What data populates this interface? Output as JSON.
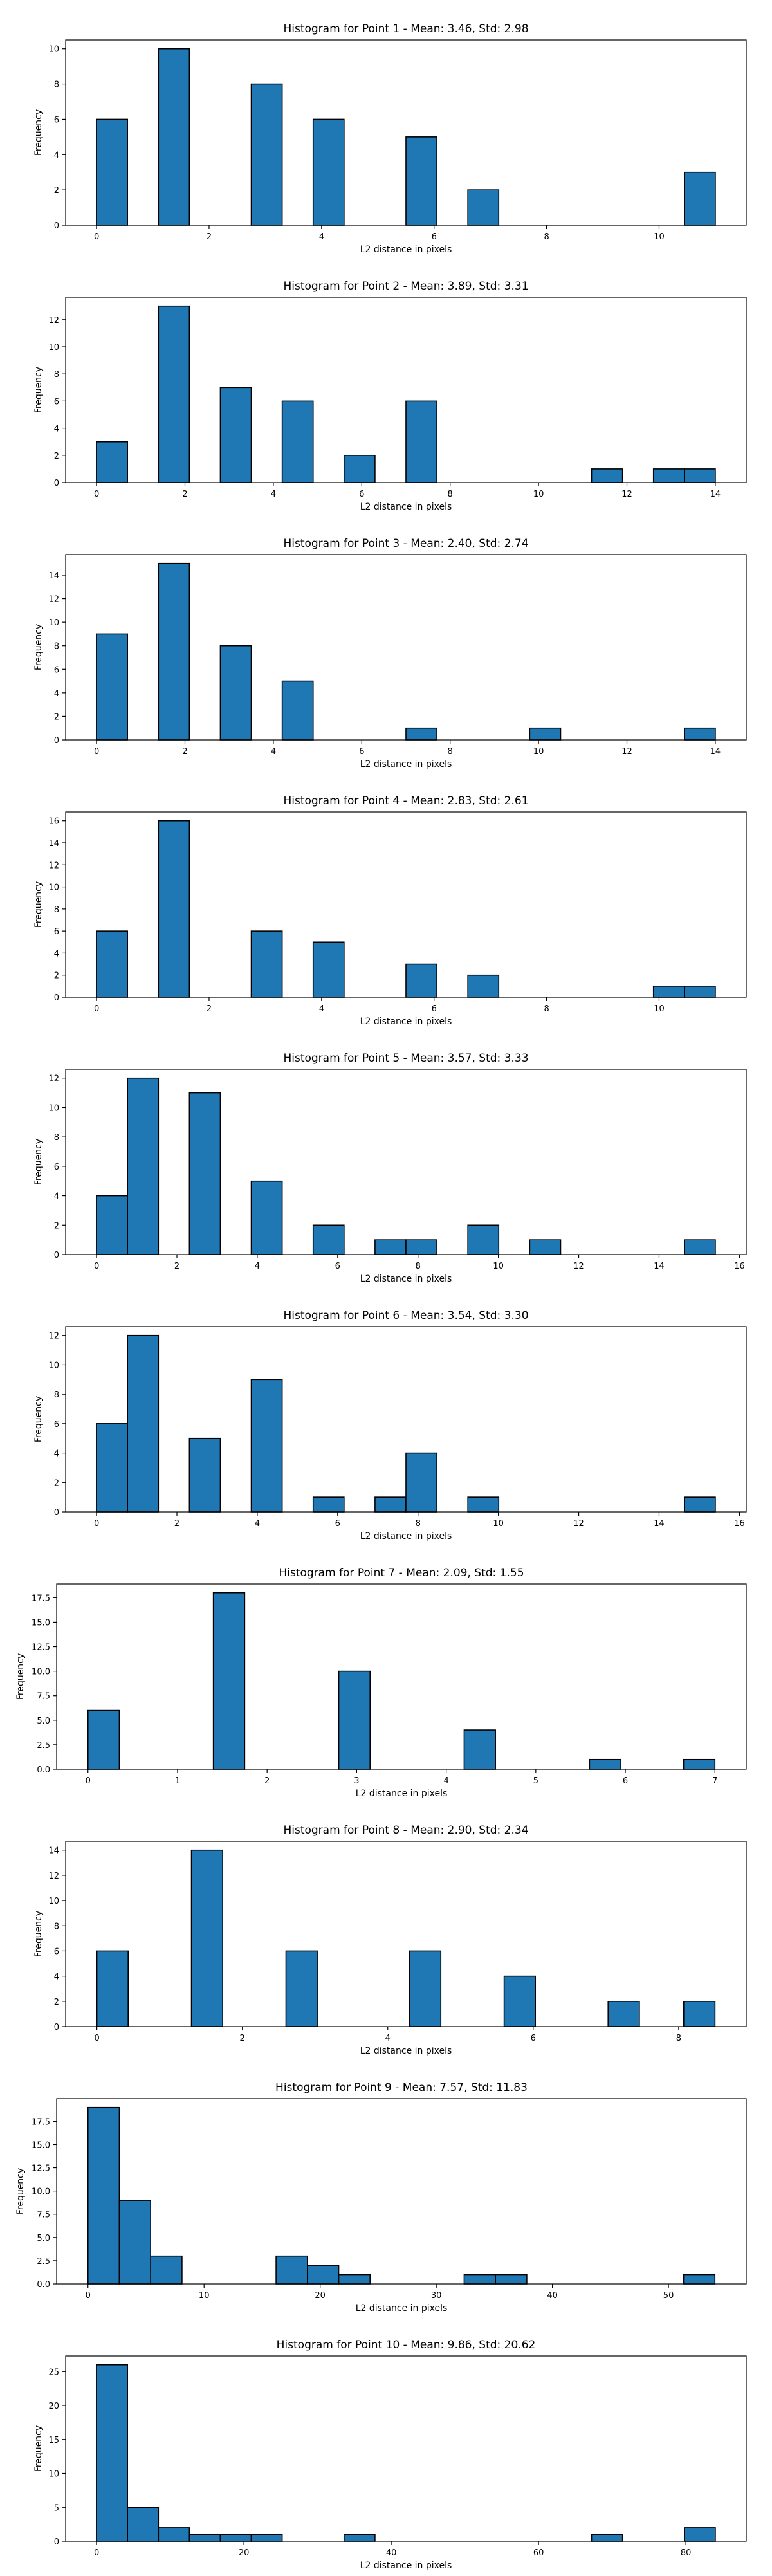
{
  "chart_data": [
    {
      "type": "bar",
      "title": "Histogram for Point 1 - Mean: 3.46, Std: 2.98",
      "xlabel": "L2 distance in pixels",
      "ylabel": "Frequency",
      "xlim": [
        -0.55,
        11.55
      ],
      "ylim": [
        0,
        10.5
      ],
      "xticks": [
        0,
        2,
        4,
        6,
        8,
        10
      ],
      "yticks": [
        0,
        2,
        4,
        6,
        8,
        10
      ],
      "bins": [
        {
          "x0": 0.0,
          "x1": 0.55,
          "count": 6
        },
        {
          "x0": 1.1,
          "x1": 1.65,
          "count": 10
        },
        {
          "x0": 2.75,
          "x1": 3.3,
          "count": 8
        },
        {
          "x0": 3.85,
          "x1": 4.4,
          "count": 6
        },
        {
          "x0": 5.5,
          "x1": 6.05,
          "count": 5
        },
        {
          "x0": 6.6,
          "x1": 7.15,
          "count": 2
        },
        {
          "x0": 10.45,
          "x1": 11.0,
          "count": 3
        }
      ]
    },
    {
      "type": "bar",
      "title": "Histogram for Point 2 - Mean: 3.89, Std: 3.31",
      "xlabel": "L2 distance in pixels",
      "ylabel": "Frequency",
      "xlim": [
        -0.7,
        14.7
      ],
      "ylim": [
        0,
        13.65
      ],
      "xticks": [
        0,
        2,
        4,
        6,
        8,
        10,
        12,
        14
      ],
      "yticks": [
        0,
        2,
        4,
        6,
        8,
        10,
        12
      ],
      "bins": [
        {
          "x0": 0.0,
          "x1": 0.7,
          "count": 3
        },
        {
          "x0": 1.4,
          "x1": 2.1,
          "count": 13
        },
        {
          "x0": 2.8,
          "x1": 3.5,
          "count": 7
        },
        {
          "x0": 4.2,
          "x1": 4.9,
          "count": 6
        },
        {
          "x0": 5.6,
          "x1": 6.3,
          "count": 2
        },
        {
          "x0": 7.0,
          "x1": 7.7,
          "count": 6
        },
        {
          "x0": 11.2,
          "x1": 11.9,
          "count": 1
        },
        {
          "x0": 12.6,
          "x1": 13.3,
          "count": 1
        },
        {
          "x0": 13.3,
          "x1": 14.0,
          "count": 1
        }
      ]
    },
    {
      "type": "bar",
      "title": "Histogram for Point 3 - Mean: 2.40, Std: 2.74",
      "xlabel": "L2 distance in pixels",
      "ylabel": "Frequency",
      "xlim": [
        -0.7,
        14.7
      ],
      "ylim": [
        0,
        15.75
      ],
      "xticks": [
        0,
        2,
        4,
        6,
        8,
        10,
        12,
        14
      ],
      "yticks": [
        0,
        2,
        4,
        6,
        8,
        10,
        12,
        14
      ],
      "bins": [
        {
          "x0": 0.0,
          "x1": 0.7,
          "count": 9
        },
        {
          "x0": 1.4,
          "x1": 2.1,
          "count": 15
        },
        {
          "x0": 2.8,
          "x1": 3.5,
          "count": 8
        },
        {
          "x0": 4.2,
          "x1": 4.9,
          "count": 5
        },
        {
          "x0": 7.0,
          "x1": 7.7,
          "count": 1
        },
        {
          "x0": 9.8,
          "x1": 10.5,
          "count": 1
        },
        {
          "x0": 13.3,
          "x1": 14.0,
          "count": 1
        }
      ]
    },
    {
      "type": "bar",
      "title": "Histogram for Point 4 - Mean: 2.83, Std: 2.61",
      "xlabel": "L2 distance in pixels",
      "ylabel": "Frequency",
      "xlim": [
        -0.55,
        11.55
      ],
      "ylim": [
        0,
        16.8
      ],
      "xticks": [
        0,
        2,
        4,
        6,
        8,
        10
      ],
      "yticks": [
        0,
        2,
        4,
        6,
        8,
        10,
        12,
        14,
        16
      ],
      "bins": [
        {
          "x0": 0.0,
          "x1": 0.55,
          "count": 6
        },
        {
          "x0": 1.1,
          "x1": 1.65,
          "count": 16
        },
        {
          "x0": 2.75,
          "x1": 3.3,
          "count": 6
        },
        {
          "x0": 3.85,
          "x1": 4.4,
          "count": 5
        },
        {
          "x0": 5.5,
          "x1": 6.05,
          "count": 3
        },
        {
          "x0": 6.6,
          "x1": 7.15,
          "count": 2
        },
        {
          "x0": 9.9,
          "x1": 10.45,
          "count": 1
        },
        {
          "x0": 10.45,
          "x1": 11.0,
          "count": 1
        }
      ]
    },
    {
      "type": "bar",
      "title": "Histogram for Point 5 - Mean: 3.57, Std: 3.33",
      "xlabel": "L2 distance in pixels",
      "ylabel": "Frequency",
      "xlim": [
        -0.77,
        16.17
      ],
      "ylim": [
        0,
        12.6
      ],
      "xticks": [
        0,
        2,
        4,
        6,
        8,
        10,
        12,
        14,
        16
      ],
      "yticks": [
        0,
        2,
        4,
        6,
        8,
        10,
        12
      ],
      "bins": [
        {
          "x0": 0.0,
          "x1": 0.77,
          "count": 4
        },
        {
          "x0": 0.77,
          "x1": 1.54,
          "count": 12
        },
        {
          "x0": 2.31,
          "x1": 3.08,
          "count": 11
        },
        {
          "x0": 3.85,
          "x1": 4.62,
          "count": 5
        },
        {
          "x0": 5.39,
          "x1": 6.16,
          "count": 2
        },
        {
          "x0": 6.93,
          "x1": 7.7,
          "count": 1
        },
        {
          "x0": 7.7,
          "x1": 8.47,
          "count": 1
        },
        {
          "x0": 9.24,
          "x1": 10.01,
          "count": 2
        },
        {
          "x0": 10.78,
          "x1": 11.55,
          "count": 1
        },
        {
          "x0": 14.63,
          "x1": 15.4,
          "count": 1
        }
      ]
    },
    {
      "type": "bar",
      "title": "Histogram for Point 6 - Mean: 3.54, Std: 3.30",
      "xlabel": "L2 distance in pixels",
      "ylabel": "Frequency",
      "xlim": [
        -0.77,
        16.17
      ],
      "ylim": [
        0,
        12.6
      ],
      "xticks": [
        0,
        2,
        4,
        6,
        8,
        10,
        12,
        14,
        16
      ],
      "yticks": [
        0,
        2,
        4,
        6,
        8,
        10,
        12
      ],
      "bins": [
        {
          "x0": 0.0,
          "x1": 0.77,
          "count": 6
        },
        {
          "x0": 0.77,
          "x1": 1.54,
          "count": 12
        },
        {
          "x0": 2.31,
          "x1": 3.08,
          "count": 5
        },
        {
          "x0": 3.85,
          "x1": 4.62,
          "count": 9
        },
        {
          "x0": 5.39,
          "x1": 6.16,
          "count": 1
        },
        {
          "x0": 6.93,
          "x1": 7.7,
          "count": 1
        },
        {
          "x0": 7.7,
          "x1": 8.47,
          "count": 4
        },
        {
          "x0": 9.24,
          "x1": 10.01,
          "count": 1
        },
        {
          "x0": 14.63,
          "x1": 15.4,
          "count": 1
        }
      ]
    },
    {
      "type": "bar",
      "title": "Histogram for Point 7 - Mean: 2.09, Std: 1.55",
      "xlabel": "L2 distance in pixels",
      "ylabel": "Frequency",
      "xlim": [
        -0.35,
        7.35
      ],
      "ylim": [
        0,
        18.9
      ],
      "xticks": [
        0,
        1,
        2,
        3,
        4,
        5,
        6,
        7
      ],
      "yticks": [
        "0.0",
        "2.5",
        "5.0",
        "7.5",
        "10.0",
        "12.5",
        "15.0",
        "17.5"
      ],
      "bins": [
        {
          "x0": 0.0,
          "x1": 0.35,
          "count": 6
        },
        {
          "x0": 1.4,
          "x1": 1.75,
          "count": 18
        },
        {
          "x0": 2.8,
          "x1": 3.15,
          "count": 10
        },
        {
          "x0": 4.2,
          "x1": 4.55,
          "count": 4
        },
        {
          "x0": 5.6,
          "x1": 5.95,
          "count": 1
        },
        {
          "x0": 6.65,
          "x1": 7.0,
          "count": 1
        }
      ]
    },
    {
      "type": "bar",
      "title": "Histogram for Point 8 - Mean: 2.90, Std: 2.34",
      "xlabel": "L2 distance in pixels",
      "ylabel": "Frequency",
      "xlim": [
        -0.43,
        8.93
      ],
      "ylim": [
        0,
        14.7
      ],
      "xticks": [
        0,
        2,
        4,
        6,
        8
      ],
      "yticks": [
        0,
        2,
        4,
        6,
        8,
        10,
        12,
        14
      ],
      "bins": [
        {
          "x0": 0.0,
          "x1": 0.43,
          "count": 6
        },
        {
          "x0": 1.3,
          "x1": 1.73,
          "count": 14
        },
        {
          "x0": 2.6,
          "x1": 3.03,
          "count": 6
        },
        {
          "x0": 4.3,
          "x1": 4.73,
          "count": 6
        },
        {
          "x0": 5.6,
          "x1": 6.03,
          "count": 4
        },
        {
          "x0": 7.03,
          "x1": 7.46,
          "count": 2
        },
        {
          "x0": 8.07,
          "x1": 8.5,
          "count": 2
        }
      ]
    },
    {
      "type": "bar",
      "title": "Histogram for Point 9 - Mean: 7.57, Std: 11.83",
      "xlabel": "L2 distance in pixels",
      "ylabel": "Frequency",
      "xlim": [
        -2.7,
        56.7
      ],
      "ylim": [
        0,
        19.95
      ],
      "xticks": [
        0,
        10,
        20,
        30,
        40,
        50
      ],
      "yticks": [
        "0.0",
        "2.5",
        "5.0",
        "7.5",
        "10.0",
        "12.5",
        "15.0",
        "17.5"
      ],
      "bins": [
        {
          "x0": 0.0,
          "x1": 2.7,
          "count": 19
        },
        {
          "x0": 2.7,
          "x1": 5.4,
          "count": 9
        },
        {
          "x0": 5.4,
          "x1": 8.1,
          "count": 3
        },
        {
          "x0": 16.2,
          "x1": 18.9,
          "count": 3
        },
        {
          "x0": 18.9,
          "x1": 21.6,
          "count": 2
        },
        {
          "x0": 21.6,
          "x1": 24.3,
          "count": 1
        },
        {
          "x0": 32.4,
          "x1": 35.1,
          "count": 1
        },
        {
          "x0": 35.1,
          "x1": 37.8,
          "count": 1
        },
        {
          "x0": 51.3,
          "x1": 54.0,
          "count": 1
        }
      ]
    },
    {
      "type": "bar",
      "title": "Histogram for Point 10 - Mean: 9.86, Std: 20.62",
      "xlabel": "L2 distance in pixels",
      "ylabel": "Frequency",
      "xlim": [
        -4.2,
        88.2
      ],
      "ylim": [
        0,
        27.3
      ],
      "xticks": [
        0,
        20,
        40,
        60,
        80
      ],
      "yticks": [
        0,
        5,
        10,
        15,
        20,
        25
      ],
      "bins": [
        {
          "x0": 0.0,
          "x1": 4.2,
          "count": 26
        },
        {
          "x0": 4.2,
          "x1": 8.4,
          "count": 5
        },
        {
          "x0": 8.4,
          "x1": 12.6,
          "count": 2
        },
        {
          "x0": 12.6,
          "x1": 16.8,
          "count": 1
        },
        {
          "x0": 16.8,
          "x1": 21.0,
          "count": 1
        },
        {
          "x0": 21.0,
          "x1": 25.2,
          "count": 1
        },
        {
          "x0": 33.6,
          "x1": 37.8,
          "count": 1
        },
        {
          "x0": 67.2,
          "x1": 71.4,
          "count": 1
        },
        {
          "x0": 79.8,
          "x1": 84.0,
          "count": 2
        }
      ],
      "bar_color": "#1f77b4",
      "edge_color": "#000000"
    }
  ],
  "colors": {
    "bar": "#1f77b4",
    "edge": "#000000",
    "axis": "#000000",
    "background": "#ffffff"
  }
}
